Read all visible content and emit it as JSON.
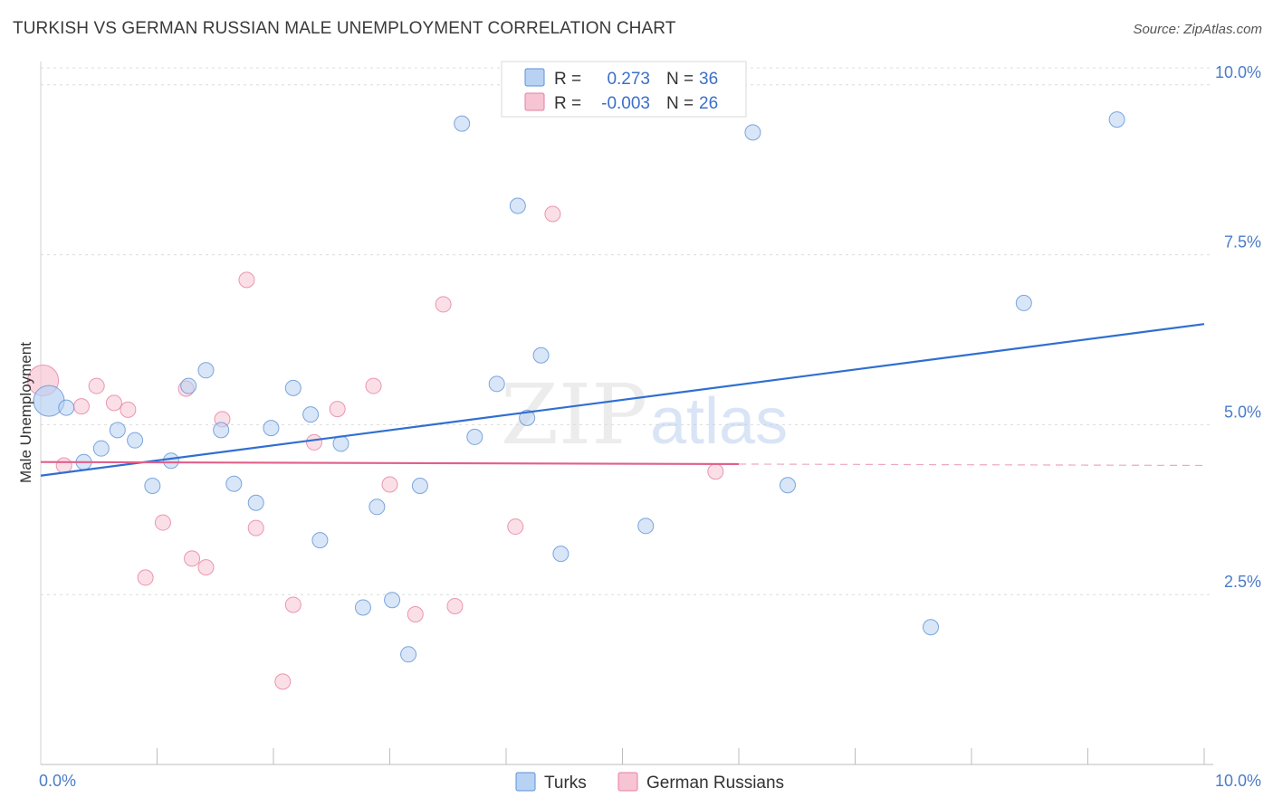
{
  "title": "TURKISH VS GERMAN RUSSIAN MALE UNEMPLOYMENT CORRELATION CHART",
  "source": "Source: ZipAtlas.com",
  "watermark": {
    "zip": "ZIP",
    "atlas": "atlas"
  },
  "colors": {
    "turks_fill": "#b8d2f3",
    "turks_stroke": "#5e91d6",
    "turks_line": "#2f6fd0",
    "gr_fill": "#f7c4d3",
    "gr_stroke": "#e57fa0",
    "gr_line": "#e0608a",
    "grid": "#dcdcdc",
    "tick_text": "#4a7cc8"
  },
  "legend": {
    "rows": [
      {
        "r_label": "R =",
        "r_value": "0.273",
        "n_label": "N =",
        "n_value": "36"
      },
      {
        "r_label": "R =",
        "r_value": "-0.003",
        "n_label": "N =",
        "n_value": "26"
      }
    ]
  },
  "chart_data": {
    "type": "scatter",
    "title": "TURKISH VS GERMAN RUSSIAN MALE UNEMPLOYMENT CORRELATION CHART",
    "xlabel": "",
    "ylabel": "Male Unemployment",
    "xlim": [
      0,
      10
    ],
    "ylim": [
      0,
      10.25
    ],
    "x_tick_labels": [
      "0.0%",
      "10.0%"
    ],
    "y_ticks": [
      2.5,
      5.0,
      7.5,
      10.0
    ],
    "y_tick_labels": [
      "2.5%",
      "5.0%",
      "7.5%",
      "10.0%"
    ],
    "grid": true,
    "legend_position": "top-center",
    "series": [
      {
        "name": "Turks",
        "trend": {
          "x": [
            0,
            10
          ],
          "y": [
            4.25,
            6.48
          ]
        },
        "points": [
          {
            "x": 0.07,
            "y": 5.35,
            "big": true
          },
          {
            "x": 0.22,
            "y": 5.25
          },
          {
            "x": 0.37,
            "y": 4.45
          },
          {
            "x": 0.52,
            "y": 4.65
          },
          {
            "x": 0.66,
            "y": 4.92
          },
          {
            "x": 0.81,
            "y": 4.77
          },
          {
            "x": 0.96,
            "y": 4.1
          },
          {
            "x": 1.12,
            "y": 4.47
          },
          {
            "x": 1.27,
            "y": 5.57
          },
          {
            "x": 1.42,
            "y": 5.8
          },
          {
            "x": 1.55,
            "y": 4.92
          },
          {
            "x": 1.66,
            "y": 4.13
          },
          {
            "x": 1.85,
            "y": 3.85
          },
          {
            "x": 1.98,
            "y": 4.95
          },
          {
            "x": 2.17,
            "y": 5.54
          },
          {
            "x": 2.32,
            "y": 5.15
          },
          {
            "x": 2.4,
            "y": 3.3
          },
          {
            "x": 2.58,
            "y": 4.72
          },
          {
            "x": 2.77,
            "y": 2.31
          },
          {
            "x": 2.89,
            "y": 3.79
          },
          {
            "x": 3.02,
            "y": 2.42
          },
          {
            "x": 3.16,
            "y": 1.62
          },
          {
            "x": 3.26,
            "y": 4.1
          },
          {
            "x": 3.62,
            "y": 9.43
          },
          {
            "x": 3.73,
            "y": 4.82
          },
          {
            "x": 3.92,
            "y": 5.6
          },
          {
            "x": 4.1,
            "y": 8.22
          },
          {
            "x": 4.18,
            "y": 5.1
          },
          {
            "x": 4.3,
            "y": 6.02
          },
          {
            "x": 4.47,
            "y": 3.1
          },
          {
            "x": 5.2,
            "y": 3.51
          },
          {
            "x": 6.12,
            "y": 9.3
          },
          {
            "x": 6.42,
            "y": 4.11
          },
          {
            "x": 7.65,
            "y": 2.02
          },
          {
            "x": 8.45,
            "y": 6.79
          },
          {
            "x": 9.25,
            "y": 9.49
          }
        ]
      },
      {
        "name": "German Russians",
        "trend": {
          "x": [
            0,
            6.0
          ],
          "y": [
            4.45,
            4.42
          ],
          "dashed_to": 10
        },
        "points": [
          {
            "x": 0.02,
            "y": 5.65,
            "big": true
          },
          {
            "x": 0.2,
            "y": 4.4
          },
          {
            "x": 0.35,
            "y": 5.27
          },
          {
            "x": 0.48,
            "y": 5.57
          },
          {
            "x": 0.63,
            "y": 5.32
          },
          {
            "x": 0.75,
            "y": 5.22
          },
          {
            "x": 0.9,
            "y": 2.75
          },
          {
            "x": 1.05,
            "y": 3.56
          },
          {
            "x": 1.25,
            "y": 5.53
          },
          {
            "x": 1.3,
            "y": 3.03
          },
          {
            "x": 1.42,
            "y": 2.9
          },
          {
            "x": 1.56,
            "y": 5.08
          },
          {
            "x": 1.77,
            "y": 7.13
          },
          {
            "x": 1.85,
            "y": 3.48
          },
          {
            "x": 2.08,
            "y": 1.22
          },
          {
            "x": 2.17,
            "y": 2.35
          },
          {
            "x": 2.35,
            "y": 4.74
          },
          {
            "x": 2.55,
            "y": 5.23
          },
          {
            "x": 2.86,
            "y": 5.57
          },
          {
            "x": 3.0,
            "y": 4.12
          },
          {
            "x": 3.22,
            "y": 2.21
          },
          {
            "x": 3.46,
            "y": 6.77
          },
          {
            "x": 3.56,
            "y": 2.33
          },
          {
            "x": 4.08,
            "y": 3.5
          },
          {
            "x": 4.4,
            "y": 8.1
          },
          {
            "x": 5.8,
            "y": 4.31
          }
        ]
      }
    ]
  }
}
